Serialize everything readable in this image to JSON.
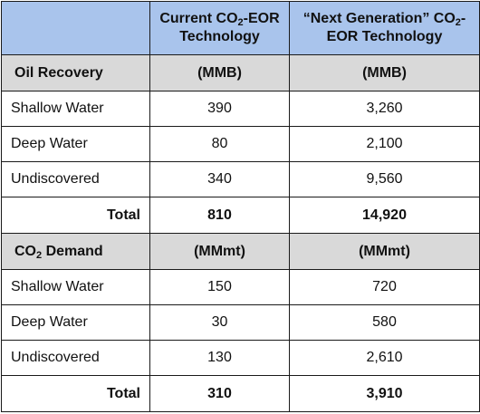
{
  "header": {
    "blank": "",
    "col2": {
      "pre": "Current CO",
      "sub": "2",
      "post": "-EOR Technology"
    },
    "col3": {
      "pre": "“Next Generation” CO",
      "sub": "2",
      "post": "-EOR Technology"
    }
  },
  "oil": {
    "title": "Oil Recovery",
    "unit2": "(MMB)",
    "unit3": "(MMB)",
    "rows": [
      {
        "label": "Shallow Water",
        "current": "390",
        "next": "3,260"
      },
      {
        "label": "Deep Water",
        "current": "80",
        "next": "2,100"
      },
      {
        "label": "Undiscovered",
        "current": "340",
        "next": "9,560"
      }
    ],
    "total": {
      "label": "Total",
      "current": "810",
      "next": "14,920"
    }
  },
  "co2": {
    "title_pre": "CO",
    "title_sub": "2",
    "title_post": " Demand",
    "unit2": "(MMmt)",
    "unit3": "(MMmt)",
    "rows": [
      {
        "label": "Shallow Water",
        "current": "150",
        "next": "720"
      },
      {
        "label": "Deep Water",
        "current": "30",
        "next": "580"
      },
      {
        "label": "Undiscovered",
        "current": "130",
        "next": "2,610"
      }
    ],
    "total": {
      "label": "Total",
      "current": "310",
      "next": "3,910"
    }
  }
}
